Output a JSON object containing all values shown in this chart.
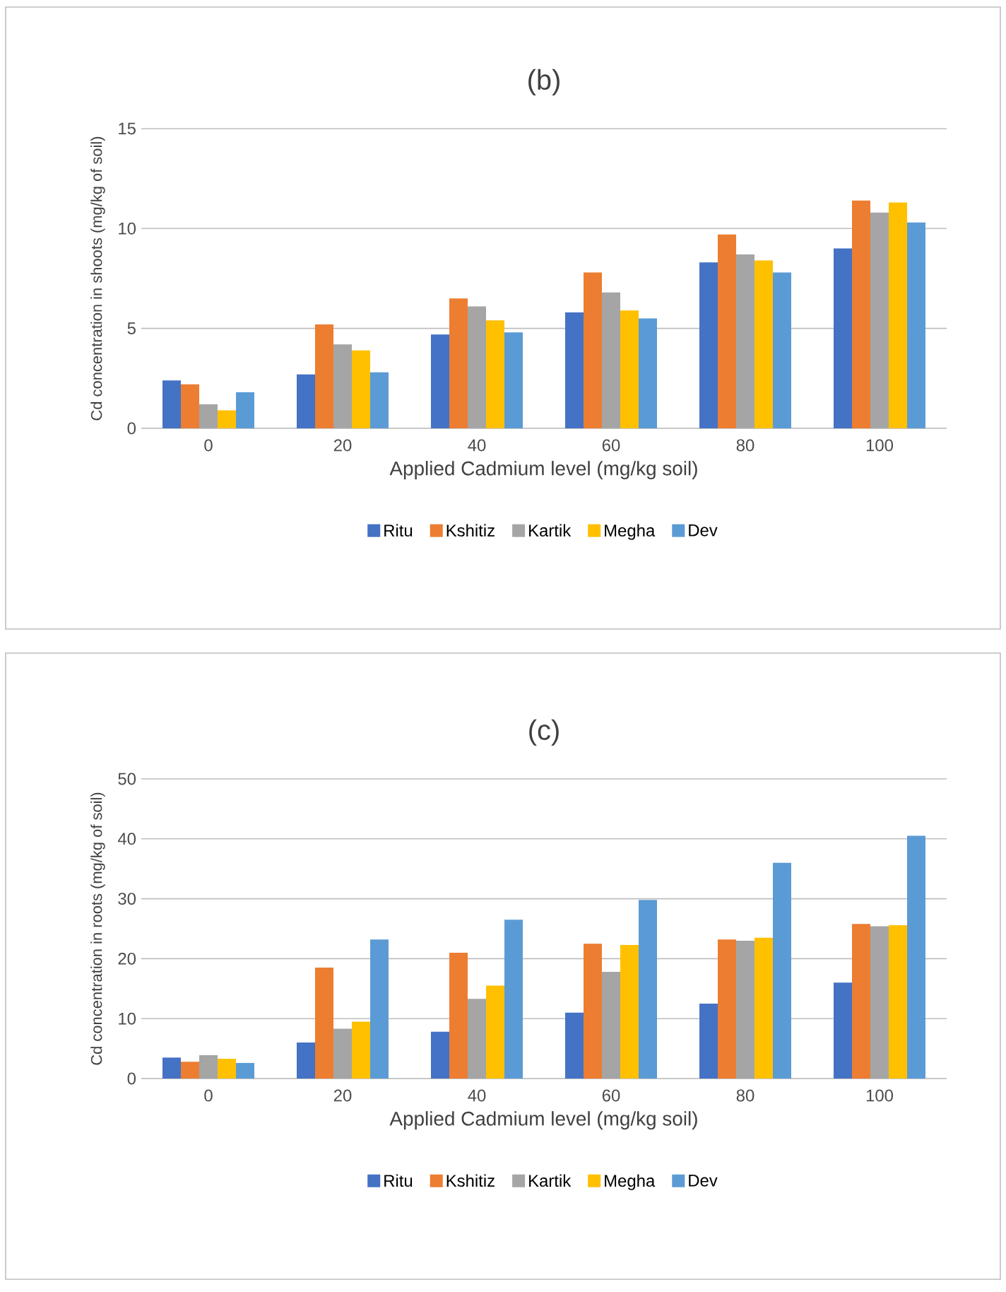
{
  "chart_data": [
    {
      "type": "bar",
      "title": "(b)",
      "xlabel": "Applied Cadmium level (mg/kg soil)",
      "ylabel": "Cd concentration in shoots (mg/kg of soil)",
      "categories": [
        "0",
        "20",
        "40",
        "60",
        "80",
        "100"
      ],
      "ylim": [
        0,
        15
      ],
      "yticks": [
        0,
        5,
        10,
        15
      ],
      "grid": "y",
      "legend": "bottom",
      "series": [
        {
          "name": "Ritu",
          "color": "#4472c4",
          "values": [
            2.4,
            2.7,
            4.7,
            5.8,
            8.3,
            9.0
          ]
        },
        {
          "name": "Kshitiz",
          "color": "#ed7d31",
          "values": [
            2.2,
            5.2,
            6.5,
            7.8,
            9.7,
            11.4
          ]
        },
        {
          "name": "Kartik",
          "color": "#a5a5a5",
          "values": [
            1.2,
            4.2,
            6.1,
            6.8,
            8.7,
            10.8
          ]
        },
        {
          "name": "Megha",
          "color": "#ffc000",
          "values": [
            0.9,
            3.9,
            5.4,
            5.9,
            8.4,
            11.3
          ]
        },
        {
          "name": "Dev",
          "color": "#5b9bd5",
          "values": [
            1.8,
            2.8,
            4.8,
            5.5,
            7.8,
            10.3
          ]
        }
      ]
    },
    {
      "type": "bar",
      "title": "(c)",
      "xlabel": "Applied Cadmium level (mg/kg soil)",
      "ylabel": "Cd concentration in roots (mg/kg of soil)",
      "categories": [
        "0",
        "20",
        "40",
        "60",
        "80",
        "100"
      ],
      "ylim": [
        0,
        50
      ],
      "yticks": [
        0,
        10,
        20,
        30,
        40,
        50
      ],
      "grid": "y",
      "legend": "bottom",
      "series": [
        {
          "name": "Ritu",
          "color": "#4472c4",
          "values": [
            3.5,
            6,
            7.8,
            11,
            12.5,
            16
          ]
        },
        {
          "name": "Kshitiz",
          "color": "#ed7d31",
          "values": [
            2.8,
            18.5,
            21,
            22.5,
            23.2,
            25.8
          ]
        },
        {
          "name": "Kartik",
          "color": "#a5a5a5",
          "values": [
            3.9,
            8.3,
            13.3,
            17.8,
            23,
            25.4
          ]
        },
        {
          "name": "Megha",
          "color": "#ffc000",
          "values": [
            3.3,
            9.5,
            15.5,
            22.3,
            23.5,
            25.6
          ]
        },
        {
          "name": "Dev",
          "color": "#5b9bd5",
          "values": [
            2.6,
            23.2,
            26.5,
            29.8,
            36,
            40.5
          ]
        }
      ]
    }
  ]
}
